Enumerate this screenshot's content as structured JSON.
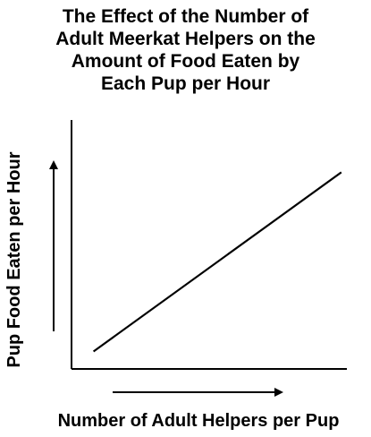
{
  "chart_data": {
    "type": "line",
    "title_lines": [
      "The Effect of the Number of",
      "Adult Meerkat Helpers on the",
      "Amount of Food Eaten by",
      "Each Pup per Hour"
    ],
    "xlabel": "Number of Adult Helpers per Pup",
    "ylabel": "Pup Food Eaten per Hour",
    "xlim": [
      0,
      10
    ],
    "ylim": [
      0,
      10
    ],
    "grid": false,
    "tick_labels": false,
    "series": [
      {
        "x": [
          0.8,
          9.8
        ],
        "y": [
          0.7,
          7.9
        ]
      }
    ],
    "colors": {
      "line": "#000000",
      "axis": "#000000",
      "text": "#000000"
    }
  }
}
